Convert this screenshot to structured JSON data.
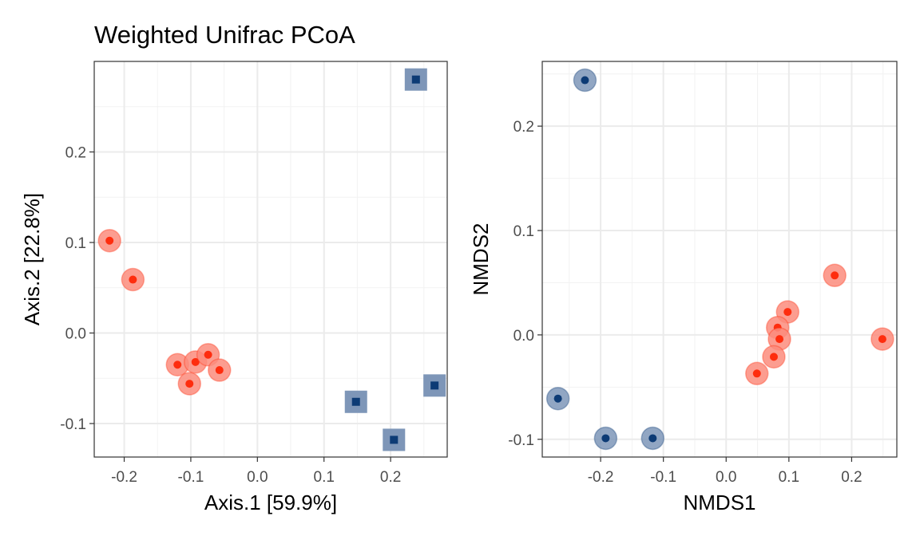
{
  "chart_data": [
    {
      "type": "scatter",
      "title": "Weighted Unifrac PCoA",
      "xlabel": "Axis.1   [59.9%]",
      "ylabel": "Axis.2   [22.8%]",
      "xlim": [
        -0.245,
        0.285
      ],
      "ylim": [
        -0.137,
        0.3
      ],
      "x_ticks": [
        -0.2,
        -0.1,
        0.0,
        0.1,
        0.2
      ],
      "x_tick_labels": [
        "-0.2",
        "-0.1",
        "0.0",
        "0.1",
        "0.2"
      ],
      "y_ticks": [
        -0.1,
        0.0,
        0.1,
        0.2
      ],
      "y_tick_labels": [
        "-0.1",
        "0.0",
        "0.1",
        "0.2"
      ],
      "grid": true,
      "legend": "none",
      "series": [
        {
          "marker": "circle",
          "color": "#fe2d0e",
          "halo_color": "#fb8c7c",
          "points": [
            {
              "x": -0.222,
              "y": 0.102
            },
            {
              "x": -0.187,
              "y": 0.059
            },
            {
              "x": -0.12,
              "y": -0.035
            },
            {
              "x": -0.093,
              "y": -0.032
            },
            {
              "x": -0.074,
              "y": -0.024
            },
            {
              "x": -0.057,
              "y": -0.041
            },
            {
              "x": -0.102,
              "y": -0.056
            }
          ]
        },
        {
          "marker": "square",
          "color": "#0d3b75",
          "halo_color": "#7e96b8",
          "points": [
            {
              "x": 0.238,
              "y": 0.28
            },
            {
              "x": 0.266,
              "y": -0.058
            },
            {
              "x": 0.148,
              "y": -0.076
            },
            {
              "x": 0.205,
              "y": -0.118
            }
          ]
        }
      ]
    },
    {
      "type": "scatter",
      "title": "",
      "xlabel": "NMDS1",
      "ylabel": "NMDS2",
      "xlim": [
        -0.293,
        0.272
      ],
      "ylim": [
        -0.117,
        0.262
      ],
      "x_ticks": [
        -0.2,
        -0.1,
        0.0,
        0.1,
        0.2
      ],
      "x_tick_labels": [
        "-0.2",
        "-0.1",
        "0.0",
        "0.1",
        "0.2"
      ],
      "y_ticks": [
        -0.1,
        0.0,
        0.1,
        0.2
      ],
      "y_tick_labels": [
        "-0.1",
        "0.0",
        "0.1",
        "0.2"
      ],
      "grid": true,
      "legend": "none",
      "series": [
        {
          "marker": "circle",
          "color": "#0d3b75",
          "halo_color": "#7e96b8",
          "points": [
            {
              "x": -0.225,
              "y": 0.244
            },
            {
              "x": -0.268,
              "y": -0.061
            },
            {
              "x": -0.192,
              "y": -0.099
            },
            {
              "x": -0.117,
              "y": -0.099
            }
          ]
        },
        {
          "marker": "circle",
          "color": "#fe2d0e",
          "halo_color": "#fb8c7c",
          "points": [
            {
              "x": 0.173,
              "y": 0.057
            },
            {
              "x": 0.098,
              "y": 0.022
            },
            {
              "x": 0.082,
              "y": 0.007
            },
            {
              "x": 0.085,
              "y": -0.004
            },
            {
              "x": 0.249,
              "y": -0.004
            },
            {
              "x": 0.076,
              "y": -0.021
            },
            {
              "x": 0.049,
              "y": -0.037
            }
          ]
        }
      ]
    }
  ]
}
